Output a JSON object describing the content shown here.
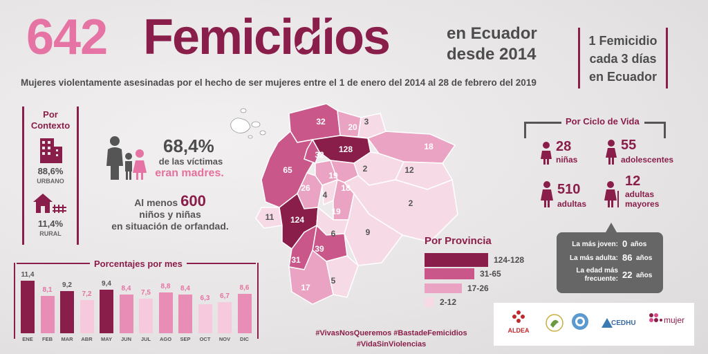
{
  "header": {
    "count": "642",
    "word": "Femicidios",
    "location_line1": "en Ecuador",
    "location_line2": "desde 2014",
    "rate_line1": "1 Femicidio",
    "rate_line2": "cada 3 días",
    "rate_line3": "en Ecuador",
    "subtitle": "Mujeres violentamente asesinadas por el hecho de ser mujeres entre el 1 de enero del 2014 al 28 de febrero del 2019"
  },
  "context": {
    "title_line1": "Por",
    "title_line2": "Contexto",
    "urban_pct": "88,6%",
    "urban_label": "URBANO",
    "rural_pct": "11,4%",
    "rural_label": "RURAL"
  },
  "mothers": {
    "pct": "68,4%",
    "line1": "de las víctimas",
    "line2": "eran madres."
  },
  "orphans": {
    "prefix": "Al menos",
    "number": "600",
    "line2": "niños y niñas",
    "line3": "en situación de orfandad."
  },
  "monthly": {
    "title": "Porcentajes por mes",
    "months": [
      "ENE",
      "FEB",
      "MAR",
      "ABR",
      "MAY",
      "JUN",
      "JUL",
      "AGO",
      "SEP",
      "OCT",
      "NOV",
      "DIC"
    ],
    "labels": [
      "11,4",
      "8,1",
      "9,2",
      "7,2",
      "9,4",
      "8,4",
      "7,5",
      "8,8",
      "8,4",
      "6,3",
      "6,7",
      "8,6"
    ],
    "values": [
      11.4,
      8.1,
      9.2,
      7.2,
      9.4,
      8.4,
      7.5,
      8.8,
      8.4,
      6.3,
      6.7,
      8.6
    ]
  },
  "province_legend": {
    "title": "Por Provincia",
    "items": [
      {
        "label": "124-128",
        "color": "#8a1e4a"
      },
      {
        "label": "31-65",
        "color": "#c9578a"
      },
      {
        "label": "17-26",
        "color": "#eaa3c3"
      },
      {
        "label": "2-12",
        "color": "#f6dbe7"
      }
    ]
  },
  "map_values": [
    "32",
    "20",
    "3",
    "128",
    "18",
    "65",
    "32",
    "19",
    "2",
    "12",
    "18",
    "26",
    "4",
    "11",
    "124",
    "19",
    "2",
    "9",
    "6",
    "39",
    "31",
    "17",
    "5"
  ],
  "hashtags": {
    "line1": "#VivasNosQueremos #BastadeFemicidios",
    "line2": "#VidaSinViolencias"
  },
  "life_cycle": {
    "title": "Por Ciclo de Vida",
    "girls_num": "28",
    "girls_label": "niñas",
    "teens_num": "55",
    "teens_label": "adolescentes",
    "adults_num": "510",
    "adults_label": "adultas",
    "elder_num": "12",
    "elder_label1": "adultas",
    "elder_label2": "mayores"
  },
  "ages": {
    "youngest_label": "La más joven:",
    "youngest_value": "0",
    "oldest_label": "La más adulta:",
    "oldest_value": "86",
    "frequent_label1": "La edad más",
    "frequent_label2": "frecuente:",
    "frequent_value": "22",
    "unit": "años"
  },
  "logos": {
    "aldea": "ALDEA",
    "cedhu": "CEDHU",
    "mujer": "mujer"
  },
  "colors": {
    "wine": "#8a1e4a",
    "pink": "#e573a3",
    "mid": "#c9578a",
    "light": "#eaa3c3",
    "pale": "#f6dbe7"
  }
}
